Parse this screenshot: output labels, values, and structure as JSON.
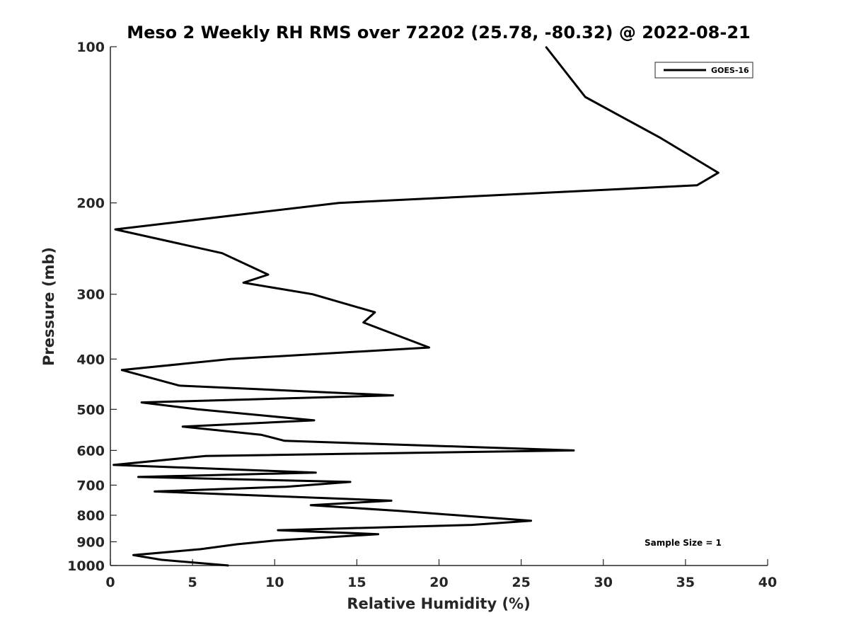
{
  "colors": {
    "line": "#000000",
    "axis": "#262626",
    "background": "#ffffff"
  },
  "chart_data": {
    "type": "line",
    "title": "Meso 2 Weekly RH RMS over 72202 (25.78, -80.32) @ 2022-08-21",
    "xlabel": "Relative Humidity (%)",
    "ylabel": "Pressure (mb)",
    "xlim": [
      0,
      40
    ],
    "ylim": [
      100,
      1000
    ],
    "yscale": "log",
    "y_reversed": true,
    "x_ticks": [
      0,
      5,
      10,
      15,
      20,
      25,
      30,
      35,
      40
    ],
    "x_tick_labels": [
      "0",
      "5",
      "10",
      "15",
      "20",
      "25",
      "30",
      "35",
      "40"
    ],
    "y_ticks": [
      100,
      200,
      300,
      400,
      500,
      600,
      700,
      800,
      900,
      1000
    ],
    "y_tick_labels": [
      "100",
      "200",
      "300",
      "400",
      "500",
      "600",
      "700",
      "800",
      "900",
      "1000"
    ],
    "legend_position": "top-right",
    "annotation": "Sample Size = 1",
    "series": [
      {
        "name": "GOES-16",
        "points": [
          [
            26.5,
            100
          ],
          [
            28.9,
            125
          ],
          [
            33.5,
            150
          ],
          [
            37.0,
            175
          ],
          [
            35.7,
            185
          ],
          [
            13.9,
            200
          ],
          [
            0.3,
            225
          ],
          [
            6.8,
            250
          ],
          [
            9.6,
            275
          ],
          [
            8.1,
            285
          ],
          [
            12.3,
            300
          ],
          [
            16.1,
            325
          ],
          [
            15.4,
            340
          ],
          [
            19.4,
            380
          ],
          [
            7.3,
            400
          ],
          [
            0.7,
            420
          ],
          [
            4.2,
            450
          ],
          [
            17.2,
            470
          ],
          [
            1.9,
            485
          ],
          [
            5.3,
            500
          ],
          [
            12.4,
            525
          ],
          [
            4.4,
            540
          ],
          [
            9.2,
            560
          ],
          [
            10.6,
            575
          ],
          [
            28.2,
            600
          ],
          [
            5.8,
            615
          ],
          [
            0.2,
            640
          ],
          [
            12.5,
            662
          ],
          [
            1.7,
            675
          ],
          [
            14.6,
            690
          ],
          [
            10.7,
            705
          ],
          [
            2.7,
            720
          ],
          [
            17.1,
            750
          ],
          [
            12.2,
            765
          ],
          [
            17.6,
            785
          ],
          [
            25.6,
            820
          ],
          [
            22.0,
            835
          ],
          [
            10.2,
            855
          ],
          [
            16.3,
            870
          ],
          [
            10.0,
            895
          ],
          [
            7.7,
            910
          ],
          [
            5.5,
            930
          ],
          [
            1.4,
            955
          ],
          [
            3.1,
            975
          ],
          [
            7.2,
            1000
          ]
        ]
      }
    ]
  }
}
